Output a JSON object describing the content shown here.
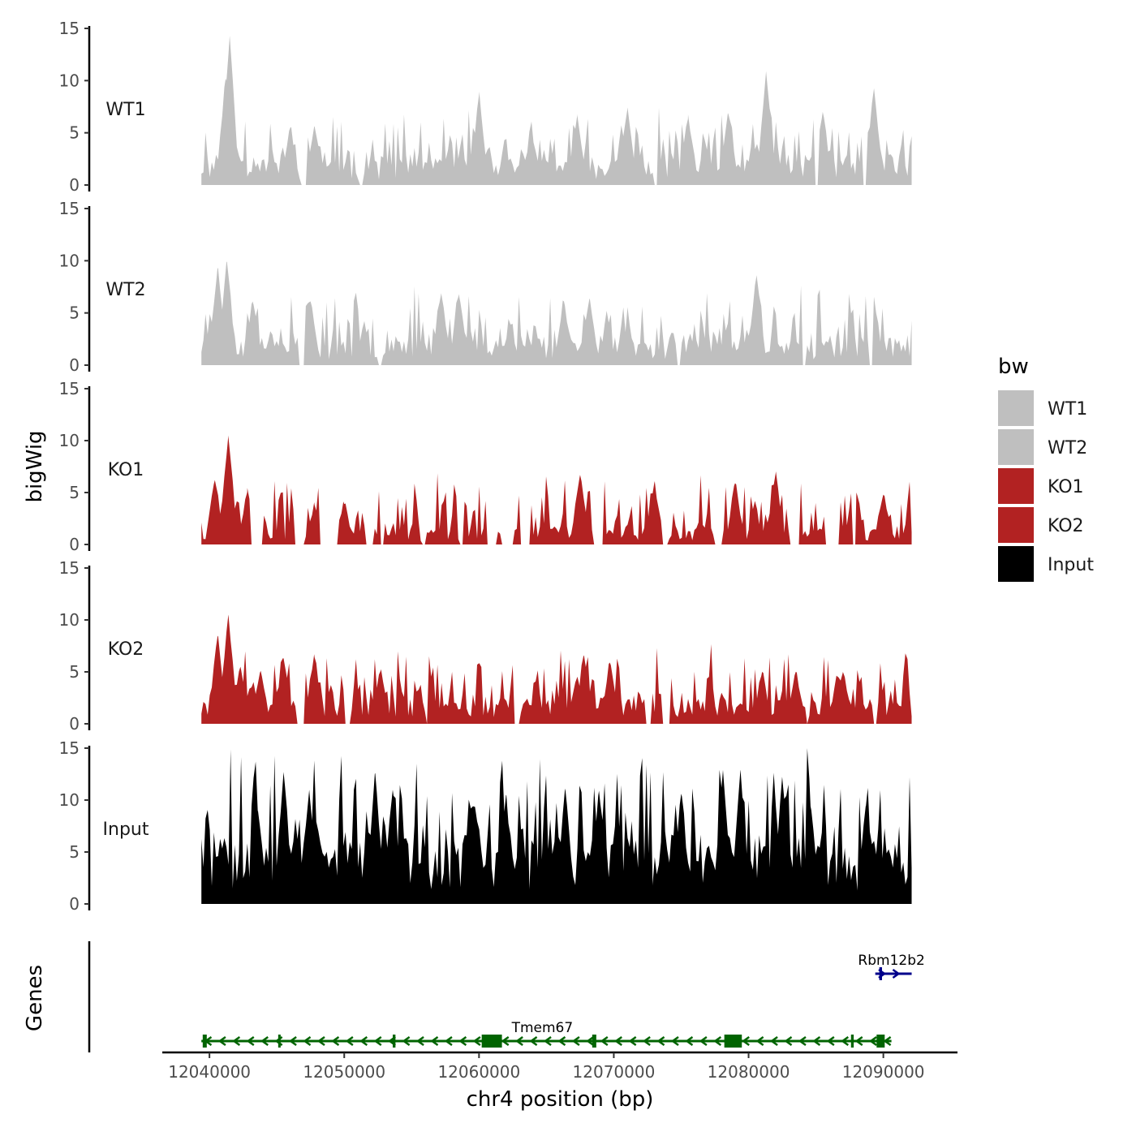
{
  "chart_data": {
    "type": "area",
    "title": "",
    "ylabel": "bigWig",
    "xlabel": "chr4 position (bp)",
    "genes_label": "Genes",
    "ylim": [
      0,
      15
    ],
    "yticks": [
      "0",
      "5",
      "10",
      "15"
    ],
    "xlim": [
      12036500,
      12095500
    ],
    "xticks": [
      {
        "value": 12040000,
        "label": "12040000"
      },
      {
        "value": 12050000,
        "label": "12050000"
      },
      {
        "value": 12060000,
        "label": "12060000"
      },
      {
        "value": 12070000,
        "label": "12070000"
      },
      {
        "value": 12080000,
        "label": "12080000"
      },
      {
        "value": 12090000,
        "label": "12090000"
      }
    ],
    "region": [
      12039400,
      12092100
    ],
    "legend": {
      "title": "bw",
      "position": "right",
      "items": [
        {
          "label": "WT1",
          "color": "#bfbfbf"
        },
        {
          "label": "WT2",
          "color": "#bfbfbf"
        },
        {
          "label": "KO1",
          "color": "#b22222"
        },
        {
          "label": "KO2",
          "color": "#b22222"
        },
        {
          "label": "Input",
          "color": "#000000"
        }
      ]
    },
    "series": [
      {
        "name": "WT1",
        "color": "#bfbfbf",
        "baseline": 2.0,
        "noise": 1.7,
        "seed": 11,
        "peaks": [
          [
            12041500,
            14.3
          ],
          [
            12041200,
            10.2
          ],
          [
            12046000,
            5.5
          ],
          [
            12047800,
            5.6
          ],
          [
            12060000,
            8.6
          ],
          [
            12067300,
            6.6
          ],
          [
            12071000,
            7.2
          ],
          [
            12075500,
            6.3
          ],
          [
            12078500,
            6.8
          ],
          [
            12081300,
            10.9
          ],
          [
            12085500,
            7.0
          ],
          [
            12089300,
            9.2
          ]
        ],
        "gaps": [
          [
            12046800,
            12047200
          ],
          [
            12051100,
            12051400
          ],
          [
            12072900,
            12073300
          ],
          [
            12084900,
            12085200
          ],
          [
            12088500,
            12088700
          ]
        ]
      },
      {
        "name": "WT2",
        "color": "#bfbfbf",
        "baseline": 2.0,
        "noise": 1.8,
        "seed": 23,
        "peaks": [
          [
            12040600,
            9.3
          ],
          [
            12041300,
            9.9
          ],
          [
            12043200,
            6.1
          ],
          [
            12047500,
            6.1
          ],
          [
            12057200,
            6.9
          ],
          [
            12058500,
            6.8
          ],
          [
            12066300,
            6.1
          ],
          [
            12068200,
            6.4
          ],
          [
            12080600,
            8.6
          ],
          [
            12089300,
            6.5
          ]
        ],
        "gaps": [
          [
            12046600,
            12047000
          ],
          [
            12052500,
            12052800
          ],
          [
            12074700,
            12075000
          ],
          [
            12084000,
            12084300
          ],
          [
            12089000,
            12089200
          ]
        ]
      },
      {
        "name": "KO1",
        "color": "#b22222",
        "baseline": 1.3,
        "noise": 1.9,
        "seed": 37,
        "peaks": [
          [
            12041400,
            10.5
          ],
          [
            12040400,
            6.2
          ],
          [
            12042800,
            5.0
          ],
          [
            12047800,
            3.8
          ],
          [
            12050000,
            3.9
          ],
          [
            12067500,
            6.7
          ],
          [
            12073000,
            5.9
          ],
          [
            12079000,
            5.9
          ],
          [
            12082000,
            6.8
          ],
          [
            12088000,
            5.0
          ],
          [
            12090000,
            4.8
          ]
        ],
        "gaps": [
          [
            12043000,
            12044000
          ],
          [
            12046300,
            12047000
          ],
          [
            12048200,
            12049500
          ],
          [
            12051600,
            12052200
          ],
          [
            12052600,
            12053000
          ],
          [
            12055700,
            12056000
          ],
          [
            12058600,
            12058900
          ],
          [
            12060500,
            12061300
          ],
          [
            12061700,
            12062600
          ],
          [
            12063100,
            12063800
          ],
          [
            12068500,
            12069300
          ],
          [
            12073600,
            12074000
          ],
          [
            12077500,
            12078000
          ],
          [
            12083000,
            12083800
          ],
          [
            12085600,
            12086800
          ],
          [
            12087700,
            12088000
          ]
        ]
      },
      {
        "name": "KO2",
        "color": "#b22222",
        "baseline": 1.9,
        "noise": 1.9,
        "seed": 53,
        "peaks": [
          [
            12041400,
            10.5
          ],
          [
            12040600,
            8.4
          ],
          [
            12042300,
            5.5
          ],
          [
            12043800,
            5.1
          ],
          [
            12045500,
            6.3
          ],
          [
            12047800,
            6.4
          ],
          [
            12052700,
            5.1
          ],
          [
            12067800,
            6.5
          ],
          [
            12069700,
            5.9
          ],
          [
            12081000,
            5.0
          ],
          [
            12083500,
            5.0
          ],
          [
            12087000,
            5.0
          ]
        ],
        "gaps": [
          [
            12046500,
            12047100
          ],
          [
            12050000,
            12050500
          ],
          [
            12056000,
            12056200
          ],
          [
            12062500,
            12063000
          ],
          [
            12072400,
            12072800
          ],
          [
            12073600,
            12074200
          ],
          [
            12084200,
            12084500
          ],
          [
            12089200,
            12089500
          ]
        ]
      },
      {
        "name": "Input",
        "color": "#000000",
        "baseline": 4.8,
        "noise": 3.4,
        "seed": 71,
        "peaks": [
          [
            12045500,
            12.7
          ],
          [
            12047400,
            11.0
          ],
          [
            12052300,
            12.6
          ],
          [
            12043600,
            9.0
          ],
          [
            12053600,
            11.0
          ],
          [
            12062000,
            10.5
          ],
          [
            12066400,
            11.1
          ],
          [
            12068900,
            10.9
          ],
          [
            12075000,
            10.6
          ],
          [
            12078100,
            12.9
          ],
          [
            12079400,
            12.9
          ],
          [
            12082500,
            12.1
          ],
          [
            12084600,
            9.4
          ],
          [
            12088700,
            9.4
          ]
        ],
        "gaps": []
      }
    ],
    "genes": [
      {
        "name": "Tmem67",
        "strand": "-",
        "color": "#006400",
        "start": 12039400,
        "end": 12090600,
        "label_pos": 12064700,
        "exons": [
          [
            12039500,
            12039800
          ],
          [
            12045100,
            12045200
          ],
          [
            12053600,
            12053800
          ],
          [
            12060200,
            12061700
          ],
          [
            12068400,
            12068700
          ],
          [
            12078200,
            12079500
          ],
          [
            12087600,
            12087800
          ],
          [
            12089500,
            12090100
          ]
        ]
      },
      {
        "name": "Rbm12b2",
        "strand": "+",
        "color": "#00008b",
        "start": 12089400,
        "end": 12092100,
        "label_pos": 12090600,
        "exons": [
          [
            12089700,
            12089900
          ]
        ]
      }
    ]
  }
}
